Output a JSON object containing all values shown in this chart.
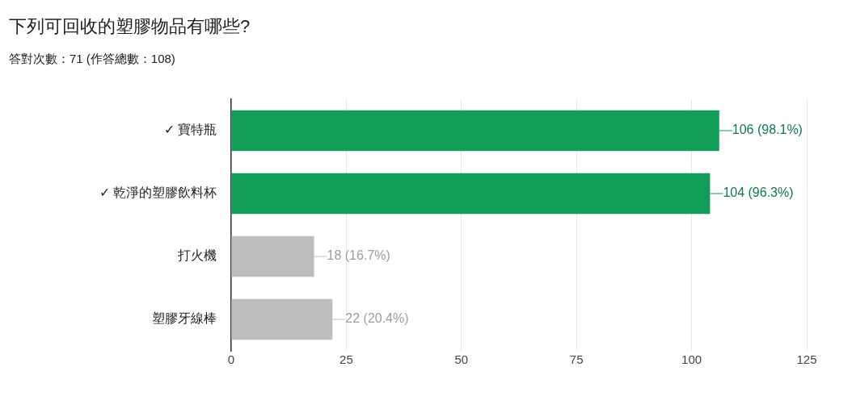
{
  "chart_data": {
    "type": "bar",
    "orientation": "horizontal",
    "title": "下列可回收的塑膠物品有哪些?",
    "subtitle": "答對次數：71 (作答總數：108)",
    "categories": [
      "✓ 寶特瓶",
      "✓ 乾淨的塑膠飲料杯",
      "打火機",
      "塑膠牙線棒"
    ],
    "values": [
      106,
      104,
      18,
      22
    ],
    "colors": [
      "#0f9d58",
      "#0f9d58",
      "#bdbdbd",
      "#bdbdbd"
    ],
    "value_labels": [
      "106 (98.1%)",
      "104 (96.3%)",
      "18 (16.7%)",
      "22 (20.4%)"
    ],
    "xlim": [
      0,
      125
    ],
    "xticks": [
      0,
      25,
      50,
      75,
      100,
      125
    ],
    "grid": "x",
    "legend": false
  }
}
